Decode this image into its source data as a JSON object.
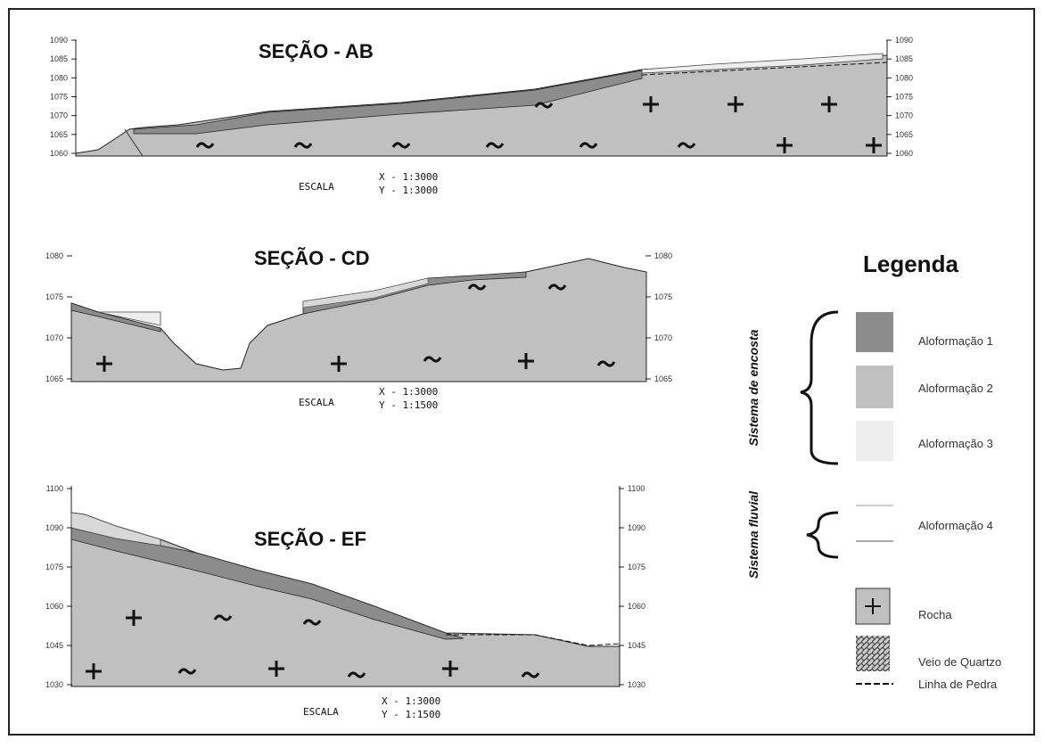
{
  "sections": [
    {
      "title": "SEÇÃO - AB",
      "scale_label": "ESCALA",
      "scale_x": "X - 1:3000",
      "scale_y": "Y - 1:3000",
      "left_axis": [
        "1090",
        "1085",
        "1080",
        "1075",
        "1070",
        "1065",
        "1060"
      ],
      "right_axis": [
        "1090",
        "1085",
        "1080",
        "1075",
        "1070",
        "1065",
        "1060"
      ]
    },
    {
      "title": "SEÇÃO - CD",
      "scale_label": "ESCALA",
      "scale_x": "X - 1:3000",
      "scale_y": "Y - 1:1500",
      "left_axis": [
        "1080",
        "1075",
        "1070",
        "1065"
      ],
      "right_axis": [
        "1080",
        "1075",
        "1070",
        "1065"
      ]
    },
    {
      "title": "SEÇÃO - EF",
      "scale_label": "ESCALA",
      "scale_x": "X - 1:3000",
      "scale_y": "Y - 1:1500",
      "left_axis": [
        "1100",
        "1090",
        "1075",
        "1060",
        "1045",
        "1030"
      ],
      "right_axis": [
        "1100",
        "1090",
        "1075",
        "1060",
        "1045",
        "1030"
      ]
    }
  ],
  "legend": {
    "title": "Legenda",
    "groups": [
      "Sistema de encosta",
      "Sistema fluvial"
    ],
    "items": [
      "Aloformação 1",
      "Aloformação 2",
      "Aloformação 3",
      "Aloformação 4",
      "Rocha",
      "Veio de Quartzo",
      "Linha de Pedra"
    ]
  }
}
